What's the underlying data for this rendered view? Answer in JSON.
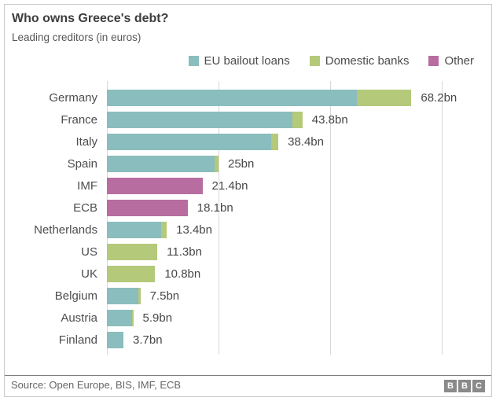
{
  "header": {
    "title": "Who owns Greece's debt?",
    "subtitle": "Leading creditors (in euros)"
  },
  "chart_data": {
    "type": "bar",
    "orientation": "horizontal",
    "stacked": true,
    "unit": "bn euros",
    "categories": [
      "Germany",
      "France",
      "Italy",
      "Spain",
      "IMF",
      "ECB",
      "Netherlands",
      "US",
      "UK",
      "Belgium",
      "Austria",
      "Finland"
    ],
    "series": [
      {
        "name": "EU bailout loans",
        "color": "#8abdbd",
        "values": [
          56.0,
          41.5,
          36.8,
          24.2,
          0,
          0,
          12.1,
          0,
          0,
          7.0,
          5.6,
          3.7
        ]
      },
      {
        "name": "Domestic banks",
        "color": "#b5c97a",
        "values": [
          12.2,
          2.3,
          1.6,
          0.8,
          0,
          0,
          1.3,
          11.3,
          10.8,
          0.5,
          0.3,
          0
        ]
      },
      {
        "name": "Other",
        "color": "#b76da0",
        "values": [
          0,
          0,
          0,
          0,
          21.4,
          18.1,
          0,
          0,
          0,
          0,
          0,
          0
        ]
      }
    ],
    "totals": [
      68.2,
      43.8,
      38.4,
      25,
      21.4,
      18.1,
      13.4,
      11.3,
      10.8,
      7.5,
      5.9,
      3.7
    ],
    "value_labels": [
      "68.2bn",
      "43.8bn",
      "38.4bn",
      "25bn",
      "21.4bn",
      "18.1bn",
      "13.4bn",
      "11.3bn",
      "10.8bn",
      "7.5bn",
      "5.9bn",
      "3.7bn"
    ],
    "xlim": [
      0,
      80
    ],
    "gridline_values": [
      0,
      25,
      50,
      75
    ],
    "grid": true,
    "legend_position": "top-right",
    "axis_tick_labels_shown": false
  },
  "footer": {
    "source": "Source: Open Europe, BIS, IMF, ECB",
    "logo_letters": [
      "B",
      "B",
      "C"
    ]
  },
  "colors": {
    "eu_bailout_loans": "#8abdbd",
    "domestic_banks": "#b5c97a",
    "other": "#b76da0",
    "gridline": "#d8d8d8",
    "border": "#c9c9c9",
    "text_dark": "#3d3d3d",
    "text_gray": "#565656",
    "logo_gray": "#8a8a8a"
  }
}
